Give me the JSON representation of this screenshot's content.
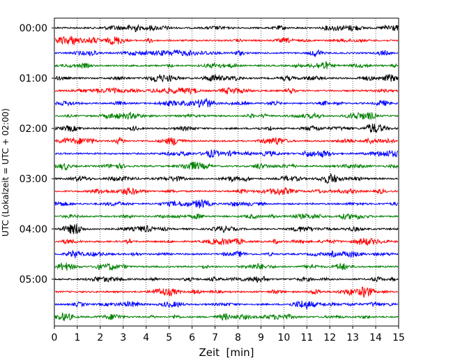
{
  "chart_data": {
    "type": "line",
    "subtype": "seismogram-helicorder",
    "xlabel": "Zeit  [min]",
    "ylabel": "UTC (Lokalzeit = UTC + 02:00)",
    "xlim": [
      0,
      15
    ],
    "x_ticks": [
      "0",
      "1",
      "2",
      "3",
      "4",
      "5",
      "6",
      "7",
      "8",
      "9",
      "10",
      "11",
      "12",
      "13",
      "14",
      "15"
    ],
    "y_ticks": [
      "00:00",
      "01:00",
      "02:00",
      "03:00",
      "04:00",
      "05:00"
    ],
    "trace_count": 24,
    "trace_interval_min": 15,
    "trace_colors": [
      "#000000",
      "#ff0000",
      "#0000ff",
      "#008000"
    ],
    "grid": "vertical dotted lines at each minute",
    "legend": "none"
  }
}
